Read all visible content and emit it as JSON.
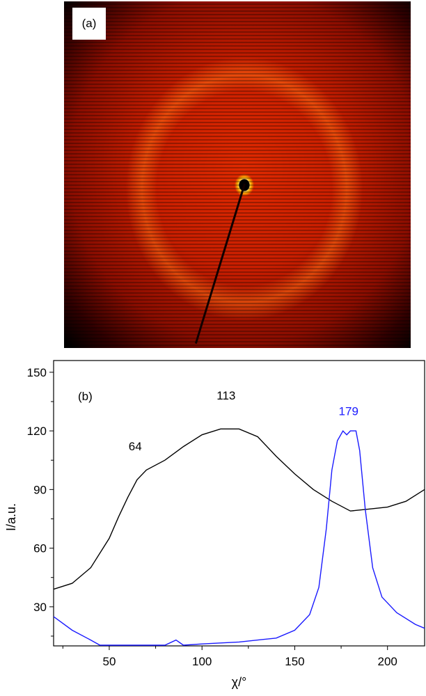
{
  "panel_a": {
    "label": "(a)"
  },
  "chart_data": {
    "type": "line",
    "panel_label": "(b)",
    "xlabel": "χ/°",
    "ylabel": "I/a.u.",
    "xlim": [
      20,
      220
    ],
    "ylim": [
      10,
      156
    ],
    "xticks": [
      50,
      100,
      150,
      200
    ],
    "yticks": [
      30,
      60,
      90,
      120,
      150
    ],
    "grid": false,
    "series": [
      {
        "name": "black",
        "color": "#000000",
        "x": [
          20,
          30,
          40,
          50,
          55,
          60,
          65,
          70,
          80,
          90,
          100,
          110,
          120,
          130,
          140,
          150,
          160,
          170,
          180,
          190,
          200,
          210,
          220
        ],
        "y": [
          39,
          42,
          50,
          65,
          76,
          86,
          95,
          100,
          105,
          112,
          118,
          121,
          121,
          117,
          107,
          98,
          90,
          84,
          79,
          80,
          81,
          84,
          90
        ]
      },
      {
        "name": "blue",
        "color": "#1a1aff",
        "x": [
          20,
          30,
          40,
          45,
          80,
          86,
          90,
          100,
          120,
          140,
          150,
          158,
          163,
          167,
          170,
          173,
          176,
          178,
          180,
          183,
          185,
          188,
          192,
          197,
          205,
          215,
          220
        ],
        "y": [
          25,
          18,
          13,
          10,
          10,
          13,
          10,
          11,
          12,
          14,
          18,
          26,
          40,
          70,
          100,
          115,
          120,
          118,
          120,
          120,
          110,
          80,
          50,
          35,
          27,
          21,
          19
        ]
      }
    ],
    "annotations": [
      {
        "text": "64",
        "x": 64,
        "y": 110,
        "color": "#000000"
      },
      {
        "text": "113",
        "x": 113,
        "y": 136,
        "color": "#000000"
      },
      {
        "text": "179",
        "x": 179,
        "y": 128,
        "color": "#1a1aff"
      }
    ]
  }
}
